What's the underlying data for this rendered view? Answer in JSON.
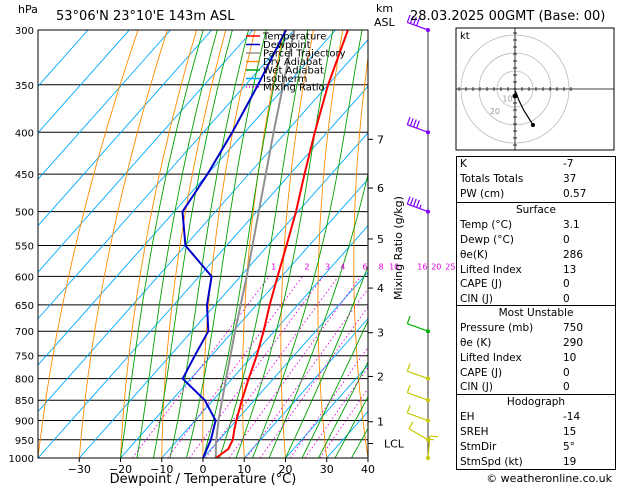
{
  "header": {
    "location": "53°06'N  23°10'E  143m  ASL",
    "datetime": "28.03.2025  00GMT  (Base: 00)",
    "hpa_label": "hPa",
    "km_label": "km",
    "asl_label": "ASL"
  },
  "legend": [
    {
      "label": "Temperature",
      "color": "#ff0000",
      "dash": "solid"
    },
    {
      "label": "Dewpoint",
      "color": "#0000cc",
      "dash": "solid"
    },
    {
      "label": "Parcel Trajectory",
      "color": "#909090",
      "dash": "solid"
    },
    {
      "label": "Dry Adiabat",
      "color": "#ff8c00",
      "dash": "solid"
    },
    {
      "label": "Wet Adiabat",
      "color": "#00a000",
      "dash": "solid"
    },
    {
      "label": "Isotherm",
      "color": "#00aaff",
      "dash": "solid"
    },
    {
      "label": "Mixing Ratio",
      "color": "#e000e0",
      "dash": "dotted"
    }
  ],
  "chart_data": {
    "type": "skew-t log-p",
    "xlabel": "Dewpoint / Temperature (°C)",
    "y2label": "Mixing Ratio (g/kg)",
    "pressure_levels": [
      300,
      350,
      400,
      450,
      500,
      550,
      600,
      650,
      700,
      750,
      800,
      850,
      900,
      950,
      1000
    ],
    "temperature_ticks": [
      -30,
      -20,
      -10,
      0,
      10,
      20,
      30,
      40
    ],
    "temperature_tick_labels": [
      "−30",
      "−20",
      "−10",
      "0",
      "10",
      "20",
      "30",
      "40"
    ],
    "xlim": [
      -40,
      40
    ],
    "ylim": [
      1000,
      300
    ],
    "km_ticks": [
      {
        "km": "1",
        "p": 903
      },
      {
        "km": "2",
        "p": 795
      },
      {
        "km": "3",
        "p": 703
      },
      {
        "km": "4",
        "p": 620
      },
      {
        "km": "5",
        "p": 540
      },
      {
        "km": "6",
        "p": 468
      },
      {
        "km": "7",
        "p": 408
      }
    ],
    "lcl": {
      "label": "LCL",
      "p": 960
    },
    "mixing_ratio_lines": [
      1,
      2,
      3,
      4,
      6,
      8,
      10,
      16,
      20,
      25
    ],
    "mixing_ratio_labels": [
      "1",
      "2",
      "3",
      "4",
      "6",
      "8",
      "10",
      "16",
      "20",
      "25"
    ],
    "mixing_ratio_label_p": 590,
    "temperature_profile": [
      {
        "p": 1000,
        "t": 3.1
      },
      {
        "p": 975,
        "t": 4.2
      },
      {
        "p": 950,
        "t": 3.3
      },
      {
        "p": 925,
        "t": 1.6
      },
      {
        "p": 900,
        "t": 0.0
      },
      {
        "p": 850,
        "t": -3.0
      },
      {
        "p": 800,
        "t": -6.0
      },
      {
        "p": 750,
        "t": -9.0
      },
      {
        "p": 700,
        "t": -12.6
      },
      {
        "p": 650,
        "t": -16.8
      },
      {
        "p": 600,
        "t": -21.0
      },
      {
        "p": 550,
        "t": -25.5
      },
      {
        "p": 500,
        "t": -30.5
      },
      {
        "p": 450,
        "t": -36.5
      },
      {
        "p": 400,
        "t": -43.0
      },
      {
        "p": 350,
        "t": -50.0
      },
      {
        "p": 300,
        "t": -57.0
      }
    ],
    "dewpoint_profile": [
      {
        "p": 1000,
        "t": 0.0
      },
      {
        "p": 950,
        "t": -2.0
      },
      {
        "p": 900,
        "t": -5.0
      },
      {
        "p": 850,
        "t": -12.0
      },
      {
        "p": 800,
        "t": -22.0
      },
      {
        "p": 750,
        "t": -24.0
      },
      {
        "p": 700,
        "t": -26.0
      },
      {
        "p": 650,
        "t": -32.0
      },
      {
        "p": 600,
        "t": -37.0
      },
      {
        "p": 550,
        "t": -50.0
      },
      {
        "p": 500,
        "t": -58.0
      },
      {
        "p": 450,
        "t": -60.0
      },
      {
        "p": 400,
        "t": -63.0
      },
      {
        "p": 350,
        "t": -67.0
      },
      {
        "p": 300,
        "t": -72.0
      }
    ],
    "parcel_profile": [
      {
        "p": 1000,
        "t": 3.1
      },
      {
        "p": 960,
        "t": 0.0
      },
      {
        "p": 900,
        "t": -4.3
      },
      {
        "p": 850,
        "t": -7.8
      },
      {
        "p": 800,
        "t": -11.5
      },
      {
        "p": 700,
        "t": -19.5
      },
      {
        "p": 600,
        "t": -28.5
      },
      {
        "p": 500,
        "t": -39.5
      },
      {
        "p": 400,
        "t": -53.0
      },
      {
        "p": 300,
        "t": -70.0
      }
    ],
    "wind_barbs": [
      {
        "p": 1000,
        "dir": 5,
        "kt": 5,
        "color": "#c8c800"
      },
      {
        "p": 950,
        "dir": 300,
        "kt": 10,
        "color": "#c8c800"
      },
      {
        "p": 900,
        "dir": 290,
        "kt": 10,
        "color": "#c8c800"
      },
      {
        "p": 850,
        "dir": 290,
        "kt": 10,
        "color": "#c8c800"
      },
      {
        "p": 800,
        "dir": 290,
        "kt": 10,
        "color": "#c8c800"
      },
      {
        "p": 700,
        "dir": 290,
        "kt": 10,
        "color": "#00b000"
      },
      {
        "p": 500,
        "dir": 290,
        "kt": 35,
        "color": "#8000ff"
      },
      {
        "p": 400,
        "dir": 290,
        "kt": 40,
        "color": "#8000ff"
      },
      {
        "p": 300,
        "dir": 290,
        "kt": 40,
        "color": "#8000ff"
      }
    ]
  },
  "hodograph": {
    "label": "kt",
    "ring_labels": [
      "10",
      "20"
    ],
    "points": [
      [
        0,
        -1
      ],
      [
        1,
        -3
      ],
      [
        2,
        -6
      ],
      [
        5,
        -12
      ],
      [
        10,
        -20
      ]
    ]
  },
  "indices": [
    {
      "label": "K",
      "value": "-7"
    },
    {
      "label": "Totals Totals",
      "value": "37"
    },
    {
      "label": "PW (cm)",
      "value": "0.57"
    }
  ],
  "surface": {
    "title": "Surface",
    "rows": [
      {
        "label": "Temp (°C)",
        "value": "3.1"
      },
      {
        "label": "Dewp (°C)",
        "value": "0"
      },
      {
        "label": "θe(K)",
        "value": "286"
      },
      {
        "label": "Lifted Index",
        "value": "13"
      },
      {
        "label": "CAPE (J)",
        "value": "0"
      },
      {
        "label": "CIN (J)",
        "value": "0"
      }
    ]
  },
  "most_unstable": {
    "title": "Most Unstable",
    "rows": [
      {
        "label": "Pressure (mb)",
        "value": "750"
      },
      {
        "label": "θe (K)",
        "value": "290"
      },
      {
        "label": "Lifted Index",
        "value": "10"
      },
      {
        "label": "CAPE (J)",
        "value": "0"
      },
      {
        "label": "CIN (J)",
        "value": "0"
      }
    ]
  },
  "hodograph_table": {
    "title": "Hodograph",
    "rows": [
      {
        "label": "EH",
        "value": "-14"
      },
      {
        "label": "SREH",
        "value": "15"
      },
      {
        "label": "StmDir",
        "value": "5°"
      },
      {
        "label": "StmSpd (kt)",
        "value": "19"
      }
    ]
  },
  "footer": {
    "copyright": "© weatheronline.co.uk"
  }
}
